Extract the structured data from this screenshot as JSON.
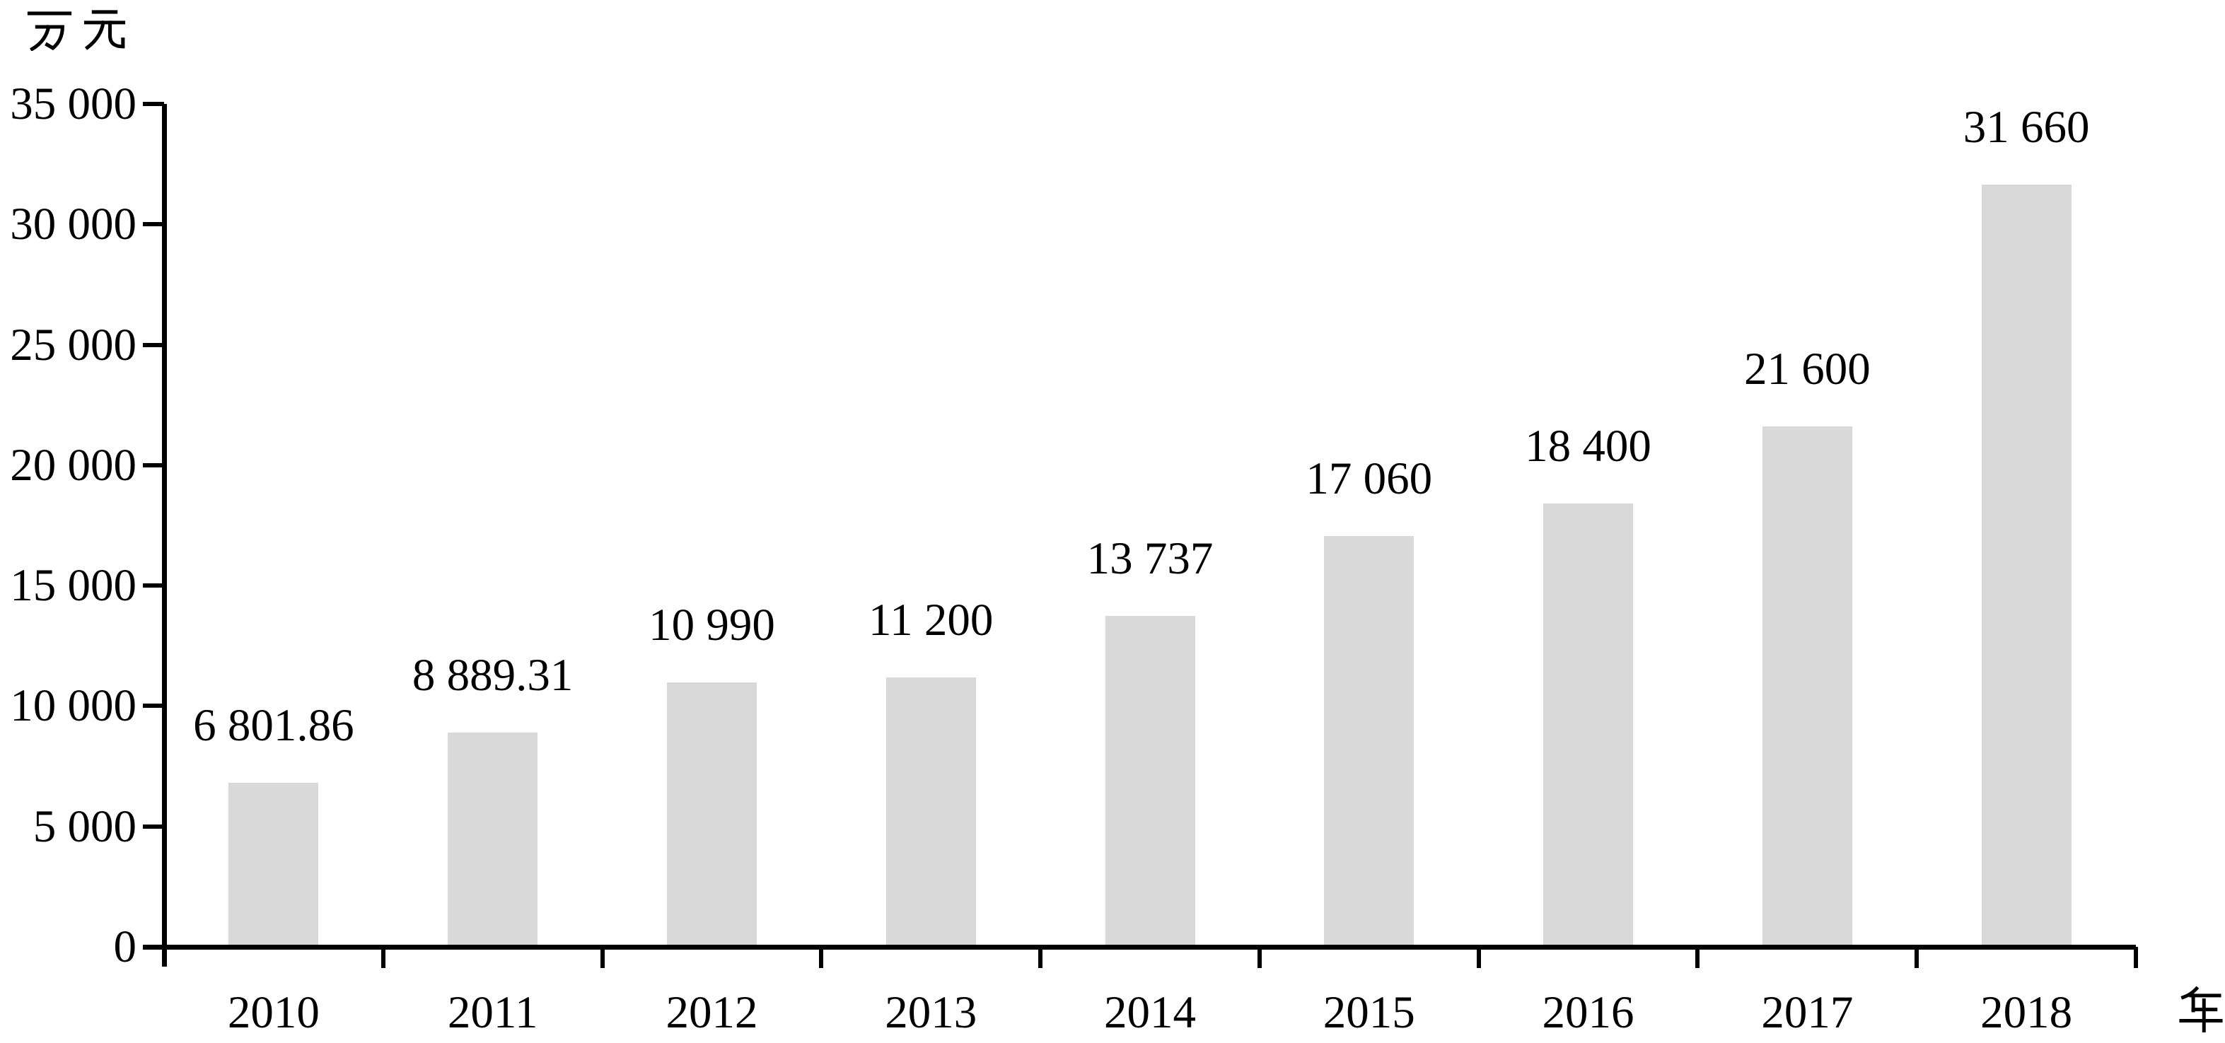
{
  "chart_data": {
    "type": "bar",
    "title": "",
    "categories": [
      "2010",
      "2011",
      "2012",
      "2013",
      "2014",
      "2015",
      "2016",
      "2017",
      "2018"
    ],
    "values": [
      6801.86,
      8889.31,
      10990,
      11200,
      13737,
      17060,
      18400,
      21600,
      31660
    ],
    "bar_value_labels": [
      "6 801.86",
      "8 889.31",
      "10 990",
      "11 200",
      "13 737",
      "17 060",
      "18 400",
      "21 600",
      "31 660"
    ],
    "xlabel": "年",
    "ylabel": "万元",
    "ylim": [
      0,
      35000
    ],
    "y_tick_step": 5000,
    "y_ticks": [
      0,
      5000,
      10000,
      15000,
      20000,
      25000,
      30000,
      35000
    ],
    "y_tick_labels": [
      "0",
      "5 000",
      "10 000",
      "15 000",
      "20 000",
      "25 000",
      "30 000",
      "35 000"
    ],
    "grid": false,
    "legend": "none",
    "bar_color": "#d9d9d9",
    "axis_color": "#000000",
    "text_color": "#000000"
  }
}
